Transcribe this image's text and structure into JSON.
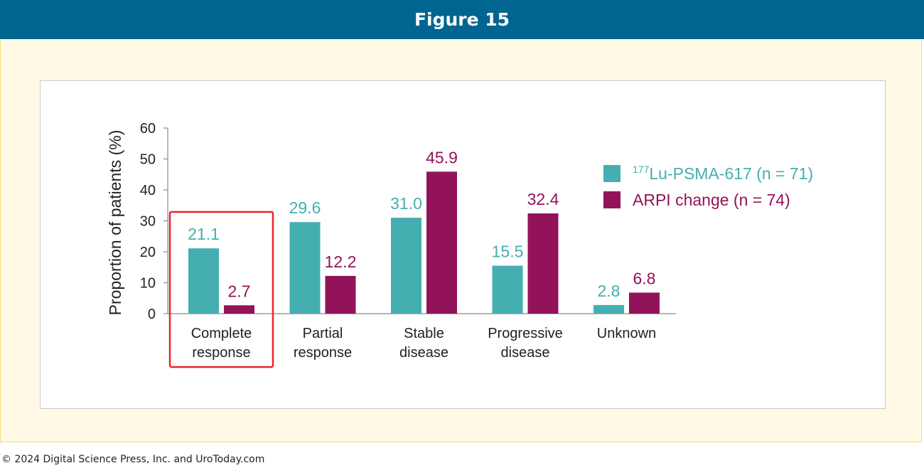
{
  "figure_title": "Figure 15",
  "copyright": "© 2024 Digital Science Press, Inc. and UroToday.com",
  "colors": {
    "header_bg": "#006590",
    "frame_bg": "#fff9e6",
    "frame_border": "#f7dd7c",
    "series_teal": "#45aeb0",
    "series_purple": "#921359",
    "highlight_box": "#e8262b"
  },
  "chart_data": {
    "type": "bar",
    "ylabel": "Proportion of patients (%)",
    "xlabel": "",
    "ylim": [
      0,
      60
    ],
    "yticks": [
      0,
      10,
      20,
      30,
      40,
      50,
      60
    ],
    "grid": false,
    "legend_position": "right",
    "categories": [
      [
        "Complete",
        "response"
      ],
      [
        "Partial",
        "response"
      ],
      [
        "Stable",
        "disease"
      ],
      [
        "Progressive",
        "disease"
      ],
      [
        "Unknown"
      ]
    ],
    "series": [
      {
        "name_super": "177",
        "name": "Lu-PSMA-617 (n = 71)",
        "color": "#45aeb0",
        "values": [
          21.1,
          29.6,
          31.0,
          15.5,
          2.8
        ],
        "labels": [
          "21.1",
          "29.6",
          "31.0",
          "15.5",
          "2.8"
        ]
      },
      {
        "name": "ARPI change (n = 74)",
        "color": "#921359",
        "values": [
          2.7,
          12.2,
          45.9,
          32.4,
          6.8
        ],
        "labels": [
          "2.7",
          "12.2",
          "45.9",
          "32.4",
          "6.8"
        ]
      }
    ],
    "highlighted_category": 0
  }
}
